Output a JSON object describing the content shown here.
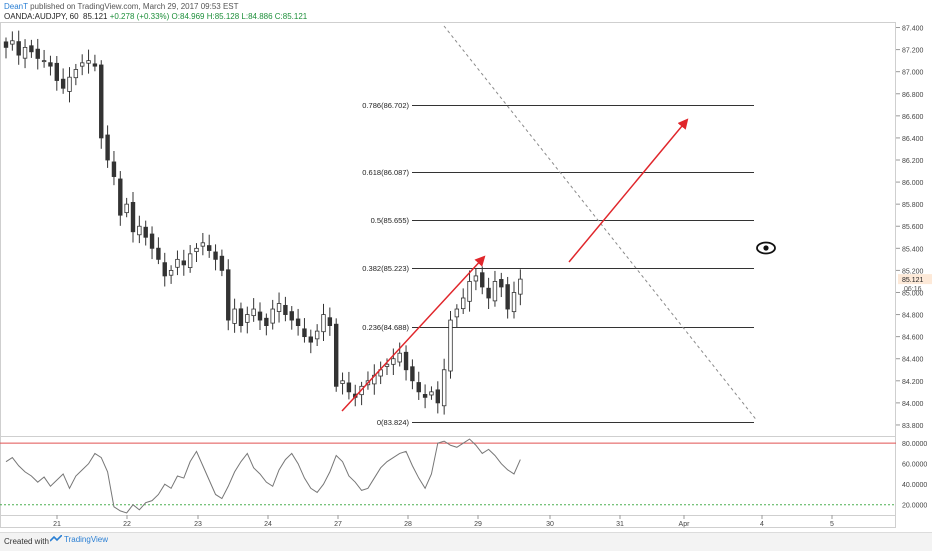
{
  "header": {
    "author": "DeanT",
    "published_text": " published on TradingView.com, March 29, 2017 09:53 EST",
    "symbol": "OANDA:AUDJPY, 60",
    "last": "85.121",
    "change": "+0.278 (+0.33%)",
    "open": "O:84.969",
    "high": "H:85.128",
    "low": "L:84.886",
    "close": "C:85.121"
  },
  "footer": {
    "created_with": "Created with",
    "brand": "TradingView"
  },
  "colors": {
    "candle": "#333333",
    "fib_line": "#333333",
    "arrow": "#e0262b",
    "diagonal": "#8a8a8a",
    "rsi_line": "#777777",
    "rsi_upper": "#e05050",
    "rsi_lower": "#4caf50",
    "price_tag_bg": "#fde9d8"
  },
  "chart_data": {
    "type": "candlestick",
    "symbol": "OANDA:AUDJPY",
    "interval": "60",
    "ylim": [
      83.7,
      87.45
    ],
    "y_ticks": [
      "87.400",
      "87.200",
      "87.000",
      "86.800",
      "86.600",
      "86.400",
      "86.200",
      "86.000",
      "85.800",
      "85.600",
      "85.400",
      "85.200",
      "85.000",
      "84.800",
      "84.600",
      "84.400",
      "84.200",
      "84.000",
      "83.800"
    ],
    "x_ticks": [
      "21",
      "22",
      "23",
      "24",
      "27",
      "28",
      "29",
      "30",
      "31",
      "Apr",
      "4",
      "5"
    ],
    "current_price_label": "85.121",
    "countdown_label": "06:16",
    "close_path": [
      [
        0,
        87.22
      ],
      [
        1,
        87.28
      ],
      [
        2,
        87.15
      ],
      [
        3,
        87.22
      ],
      [
        4,
        87.18
      ],
      [
        5,
        87.12
      ],
      [
        6,
        87.1
      ],
      [
        7,
        87.05
      ],
      [
        8,
        86.92
      ],
      [
        9,
        86.85
      ],
      [
        10,
        86.95
      ],
      [
        11,
        87.02
      ],
      [
        12,
        87.08
      ],
      [
        13,
        87.1
      ],
      [
        14,
        87.05
      ],
      [
        15,
        86.4
      ],
      [
        16,
        86.2
      ],
      [
        17,
        86.05
      ],
      [
        18,
        85.7
      ],
      [
        19,
        85.8
      ],
      [
        20,
        85.55
      ],
      [
        21,
        85.6
      ],
      [
        22,
        85.5
      ],
      [
        23,
        85.4
      ],
      [
        24,
        85.3
      ],
      [
        25,
        85.15
      ],
      [
        26,
        85.2
      ],
      [
        27,
        85.3
      ],
      [
        28,
        85.25
      ],
      [
        29,
        85.35
      ],
      [
        30,
        85.4
      ],
      [
        31,
        85.45
      ],
      [
        32,
        85.38
      ],
      [
        33,
        85.3
      ],
      [
        34,
        85.2
      ],
      [
        35,
        84.75
      ],
      [
        36,
        84.85
      ],
      [
        37,
        84.7
      ],
      [
        38,
        84.8
      ],
      [
        39,
        84.85
      ],
      [
        40,
        84.75
      ],
      [
        41,
        84.7
      ],
      [
        42,
        84.85
      ],
      [
        43,
        84.9
      ],
      [
        44,
        84.8
      ],
      [
        45,
        84.75
      ],
      [
        46,
        84.7
      ],
      [
        47,
        84.6
      ],
      [
        48,
        84.55
      ],
      [
        49,
        84.65
      ],
      [
        50,
        84.8
      ],
      [
        51,
        84.7
      ],
      [
        52,
        84.15
      ],
      [
        53,
        84.2
      ],
      [
        54,
        84.1
      ],
      [
        55,
        84.05
      ],
      [
        56,
        84.15
      ],
      [
        57,
        84.2
      ],
      [
        58,
        84.25
      ],
      [
        59,
        84.3
      ],
      [
        60,
        84.35
      ],
      [
        61,
        84.4
      ],
      [
        62,
        84.45
      ],
      [
        63,
        84.3
      ],
      [
        64,
        84.2
      ],
      [
        65,
        84.1
      ],
      [
        66,
        84.05
      ],
      [
        67,
        84.1
      ],
      [
        68,
        84.0
      ],
      [
        69,
        84.3
      ],
      [
        70,
        84.75
      ],
      [
        71,
        84.85
      ],
      [
        72,
        84.95
      ],
      [
        73,
        85.1
      ],
      [
        74,
        85.15
      ],
      [
        75,
        85.05
      ],
      [
        76,
        84.95
      ],
      [
        77,
        85.1
      ],
      [
        78,
        85.05
      ],
      [
        79,
        84.85
      ],
      [
        80,
        85.0
      ],
      [
        81,
        85.121
      ]
    ],
    "fibonacci": [
      {
        "level": "0",
        "price": 83.824,
        "label": "0(83.824)"
      },
      {
        "level": "0.236",
        "price": 84.688,
        "label": "0.236(84.688)"
      },
      {
        "level": "0.382",
        "price": 85.223,
        "label": "0.382(85.223)"
      },
      {
        "level": "0.5",
        "price": 85.655,
        "label": "0.5(85.655)"
      },
      {
        "level": "0.618",
        "price": 86.087,
        "label": "0.618(86.087)"
      },
      {
        "level": "0.786",
        "price": 86.702,
        "label": "0.786(86.702)"
      }
    ],
    "arrows": [
      {
        "from": [
          65,
          83.88
        ],
        "to": [
          93,
          85.33
        ]
      },
      {
        "from": [
          109,
          85.24
        ],
        "to": [
          131,
          86.58
        ]
      }
    ],
    "dashed_trendline": {
      "from": [
        80,
        87.5
      ],
      "to": [
        145,
        83.85
      ]
    },
    "rsi": {
      "ylim": [
        10,
        87
      ],
      "y_ticks": [
        "80.0000",
        "60.0000",
        "40.0000",
        "20.0000"
      ],
      "upper_band": 80,
      "lower_band": 20,
      "values": [
        62,
        66,
        58,
        52,
        48,
        42,
        47,
        38,
        44,
        50,
        36,
        48,
        54,
        60,
        70,
        66,
        52,
        18,
        14,
        12,
        20,
        15,
        22,
        24,
        30,
        40,
        36,
        48,
        46,
        62,
        72,
        58,
        44,
        30,
        26,
        38,
        52,
        62,
        70,
        56,
        50,
        42,
        38,
        54,
        64,
        70,
        60,
        46,
        36,
        32,
        40,
        52,
        68,
        62,
        48,
        42,
        34,
        36,
        46,
        56,
        62,
        66,
        70,
        72,
        58,
        46,
        36,
        50,
        80,
        82,
        78,
        76,
        80,
        84,
        78,
        70,
        74,
        68,
        60,
        54,
        50,
        64
      ]
    }
  }
}
